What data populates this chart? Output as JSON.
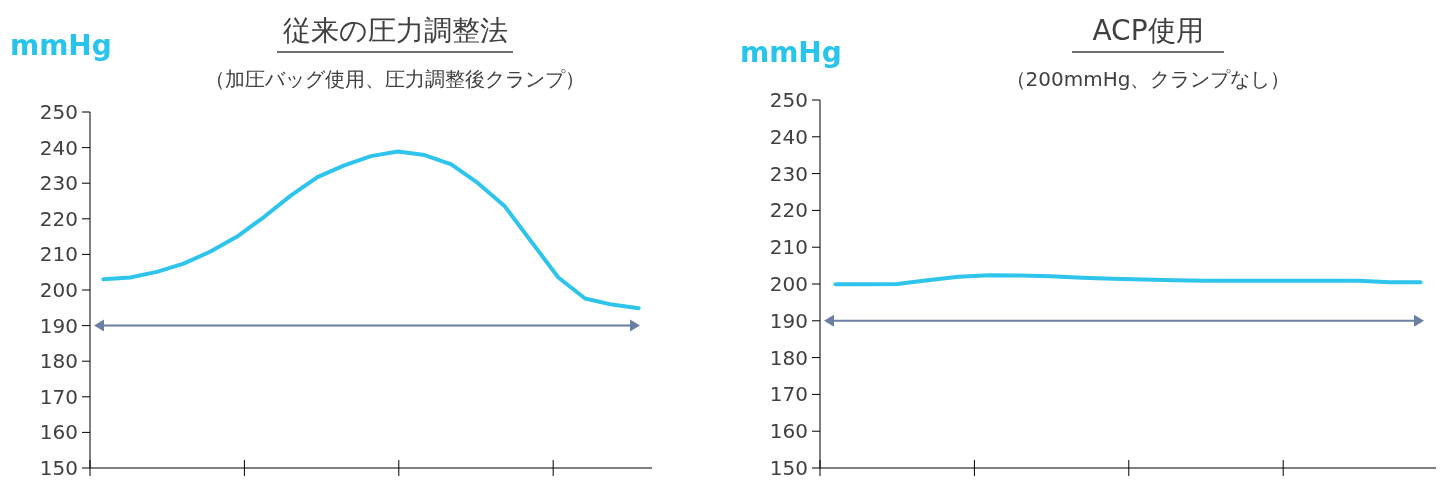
{
  "chart_data": [
    {
      "type": "line",
      "title": "従来の圧力調整法",
      "subtitle": "（加圧バッグ使用、圧力調整後クランプ）",
      "ylabel": "mmHg",
      "categories": [
        null,
        null,
        null,
        null,
        null,
        null,
        null,
        null,
        null,
        null,
        null,
        null,
        null,
        null,
        null,
        null,
        null,
        null,
        null,
        null,
        null
      ],
      "ylim": [
        150,
        250
      ],
      "yticks": [
        150,
        160,
        170,
        180,
        190,
        200,
        210,
        220,
        230,
        240,
        250
      ],
      "tick_labels": "y",
      "series": [
        {
          "color": "#2ec4ec",
          "values": [
            203,
            203.5,
            205.1,
            207.4,
            210.8,
            215,
            220.5,
            226.5,
            231.7,
            235,
            237.6,
            238.9,
            237.9,
            235.3,
            230,
            223.5,
            213.5,
            203.5,
            197.6,
            195.9,
            194.9
          ]
        }
      ],
      "ref_lines": [
        {
          "axis": "y",
          "value": 190,
          "color": "#6b7fa3"
        }
      ]
    },
    {
      "type": "line",
      "title": "ACP使用",
      "subtitle": "（200mmHg、クランプなし）",
      "ylabel": "mmHg",
      "categories": [
        null,
        null,
        null,
        null,
        null,
        null,
        null,
        null,
        null,
        null,
        null,
        null,
        null,
        null,
        null,
        null,
        null,
        null,
        null,
        null
      ],
      "ylim": [
        150,
        250
      ],
      "yticks": [
        150,
        160,
        170,
        180,
        190,
        200,
        210,
        220,
        230,
        240,
        250
      ],
      "tick_labels": "y",
      "series": [
        {
          "color": "#2ec4ec",
          "values": [
            199.9,
            199.9,
            200,
            201,
            202,
            202.4,
            202.3,
            202.1,
            201.7,
            201.4,
            201.2,
            201,
            200.9,
            200.9,
            200.9,
            200.9,
            200.9,
            200.9,
            200.5,
            200.5
          ]
        }
      ],
      "ref_lines": [
        {
          "axis": "y",
          "value": 190,
          "color": "#6b7fa3"
        }
      ]
    }
  ]
}
